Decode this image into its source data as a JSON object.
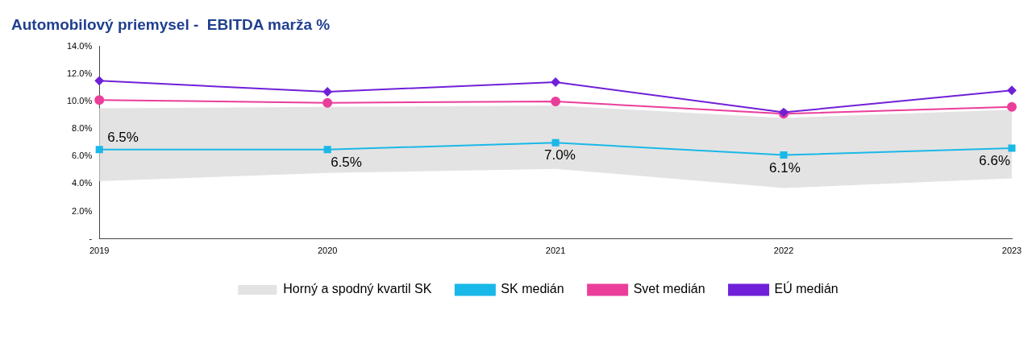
{
  "chart_data": {
    "type": "line",
    "title": "Automobilový priemysel -  EBITDA marža %",
    "categories": [
      "2019",
      "2020",
      "2021",
      "2022",
      "2023"
    ],
    "series": [
      {
        "name": "Horný a spodný kvartil SK",
        "type": "area",
        "color": "#e3e3e3",
        "values": [
          null,
          null,
          null,
          null,
          null
        ],
        "lower": [
          4.2,
          4.8,
          5.1,
          3.7,
          4.4
        ],
        "upper": [
          9.5,
          9.6,
          9.7,
          8.8,
          9.4
        ]
      },
      {
        "name": "SK medián",
        "type": "line",
        "color": "#1ab8e8",
        "marker": "square",
        "values": [
          6.5,
          6.5,
          7.0,
          6.1,
          6.6
        ],
        "value_labels": [
          "6.5%",
          "6.5%",
          "7.0%",
          "6.1%",
          "6.6%"
        ]
      },
      {
        "name": "Svet medián",
        "type": "line",
        "color": "#ea3e9a",
        "marker": "circle",
        "values": [
          10.1,
          9.9,
          10.0,
          9.1,
          9.6
        ]
      },
      {
        "name": "EÚ medián",
        "type": "line",
        "color": "#7020d8",
        "marker": "diamond",
        "values": [
          11.5,
          10.7,
          11.4,
          9.2,
          10.8
        ]
      }
    ],
    "ylim": [
      0,
      14
    ],
    "yticks": [
      {
        "value": 0,
        "label": "-"
      },
      {
        "value": 2,
        "label": "2.0%"
      },
      {
        "value": 4,
        "label": "4.0%"
      },
      {
        "value": 6,
        "label": "6.0%"
      },
      {
        "value": 8,
        "label": "8.0%"
      },
      {
        "value": 10,
        "label": "10.0%"
      },
      {
        "value": 12,
        "label": "12.0%"
      },
      {
        "value": 14,
        "label": "14.0%"
      }
    ],
    "grid": false,
    "legend": "bottom"
  }
}
